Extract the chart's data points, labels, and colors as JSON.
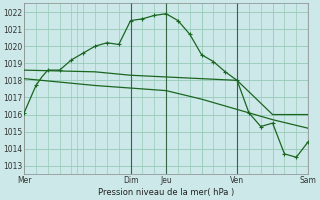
{
  "bg_color": "#cce8e8",
  "grid_color": "#99ccbb",
  "line_color": "#1a6620",
  "xlabel": "Pression niveau de la mer( hPa )",
  "ylim": [
    1012.5,
    1022.5
  ],
  "yticks": [
    1013,
    1014,
    1015,
    1016,
    1017,
    1018,
    1019,
    1020,
    1021,
    1022
  ],
  "x_day_labels": [
    "Mer",
    "",
    "Dim",
    "Jeu",
    "",
    "Ven",
    "",
    "Sam"
  ],
  "x_day_positions": [
    0,
    4.5,
    9,
    12,
    15,
    18,
    21,
    24
  ],
  "line1_x": [
    0,
    0.5,
    1,
    1.5,
    2,
    2.5,
    3,
    3.5,
    4,
    4.5,
    5,
    5.5,
    6,
    6.5,
    7,
    7.5,
    8,
    8.5,
    9,
    9.5,
    10,
    10.5,
    11,
    11.5,
    12,
    12.5,
    13,
    13.5,
    14,
    14.5,
    15,
    15.5,
    16,
    16.5,
    17,
    17.5,
    18,
    18.5,
    19,
    19.5,
    20,
    20.5,
    21,
    21.5,
    22,
    22.5,
    23,
    23.5,
    24
  ],
  "line1_y": [
    1016.1,
    1016.9,
    1017.7,
    1018.2,
    1018.6,
    1018.6,
    1018.6,
    1018.9,
    1019.2,
    1019.4,
    1019.6,
    1019.8,
    1020.0,
    1020.1,
    1020.2,
    1020.15,
    1020.1,
    1020.8,
    1021.5,
    1021.55,
    1021.6,
    1021.7,
    1021.8,
    1021.85,
    1021.9,
    1021.7,
    1021.5,
    1021.1,
    1020.7,
    1020.1,
    1019.5,
    1019.3,
    1019.1,
    1018.8,
    1018.5,
    1018.25,
    1018.0,
    1017.05,
    1016.1,
    1015.7,
    1015.3,
    1015.4,
    1015.5,
    1014.6,
    1013.7,
    1013.6,
    1013.5,
    1013.95,
    1014.4
  ],
  "line2_x": [
    0,
    3,
    6,
    9,
    12,
    15,
    18,
    21,
    24
  ],
  "line2_y": [
    1018.6,
    1018.55,
    1018.5,
    1018.3,
    1018.2,
    1018.1,
    1018.0,
    1016.0,
    1016.0
  ],
  "line3_x": [
    0,
    3,
    6,
    9,
    12,
    15,
    18,
    21,
    24
  ],
  "line3_y": [
    1018.1,
    1017.9,
    1017.7,
    1017.55,
    1017.4,
    1016.9,
    1016.3,
    1015.7,
    1015.2
  ],
  "vlines": [
    {
      "x": 9,
      "color": "#336644",
      "lw": 0.8
    },
    {
      "x": 12,
      "color": "#336644",
      "lw": 0.8
    },
    {
      "x": 18,
      "color": "#336644",
      "lw": 0.8
    },
    {
      "x": 24,
      "color": "#336644",
      "lw": 0.8
    }
  ],
  "marker_x1": [
    0,
    1,
    2,
    3,
    4,
    5,
    6,
    7,
    8,
    9,
    10,
    11,
    12,
    13,
    14,
    15,
    16,
    17,
    18,
    19,
    20,
    21,
    22,
    23,
    24
  ],
  "marker_y1": [
    1016.1,
    1017.7,
    1018.6,
    1018.6,
    1019.2,
    1019.6,
    1020.0,
    1020.2,
    1020.1,
    1021.5,
    1021.6,
    1021.8,
    1021.9,
    1021.5,
    1020.7,
    1019.5,
    1019.1,
    1018.5,
    1018.0,
    1016.1,
    1015.3,
    1015.5,
    1013.7,
    1013.5,
    1014.4
  ],
  "figsize": [
    3.2,
    2.0
  ],
  "dpi": 100
}
